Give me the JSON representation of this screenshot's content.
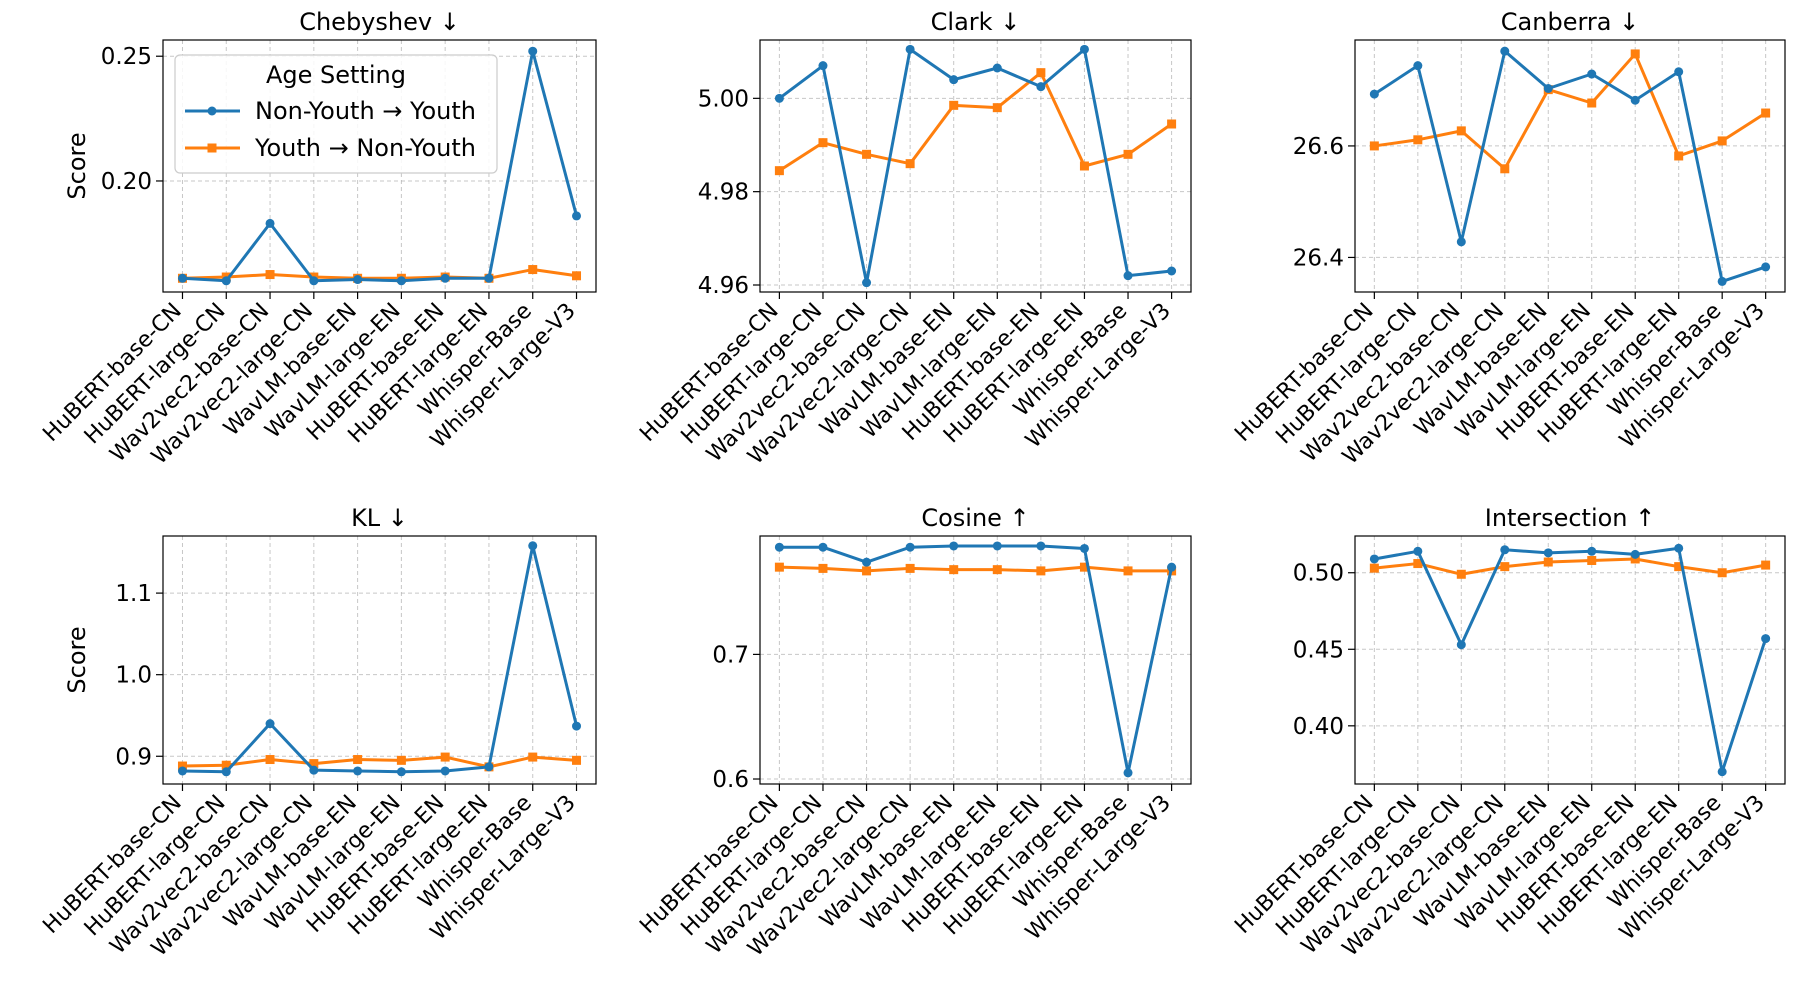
{
  "figure": {
    "legend": {
      "title": "Age Setting",
      "placement": "top-left of first panel",
      "entries": [
        {
          "name": "Non-Youth → Youth",
          "color": "#1f77b4",
          "marker": "circle"
        },
        {
          "name": "Youth → Non-Youth",
          "color": "#ff7f0e",
          "marker": "square"
        }
      ]
    },
    "ylabel": "Score"
  },
  "chart_data": [
    {
      "type": "line",
      "title": "Chebyshev ↓",
      "ylabel": "Score",
      "grid": true,
      "ylim": [
        0.1555,
        0.2565
      ],
      "yticks": [
        0.2,
        0.25
      ],
      "ytick_labels": [
        "0.20",
        "0.25"
      ],
      "categories": [
        "HuBERT-base-CN",
        "HuBERT-large-CN",
        "Wav2vec2-base-CN",
        "Wav2vec2-large-CN",
        "WavLM-base-EN",
        "WavLM-large-EN",
        "HuBERT-base-EN",
        "HuBERT-large-EN",
        "Whisper-Base",
        "Whisper-Large-V3"
      ],
      "series": [
        {
          "name": "Non-Youth → Youth",
          "color": "#1f77b4",
          "marker": "circle",
          "values": [
            0.161,
            0.16,
            0.183,
            0.16,
            0.1605,
            0.16,
            0.161,
            0.161,
            0.252,
            0.186
          ]
        },
        {
          "name": "Youth → Non-Youth",
          "color": "#ff7f0e",
          "marker": "square",
          "values": [
            0.161,
            0.1615,
            0.1625,
            0.1615,
            0.161,
            0.161,
            0.1615,
            0.161,
            0.1645,
            0.162
          ]
        }
      ]
    },
    {
      "type": "line",
      "title": "Clark ↓",
      "ylabel": "",
      "grid": true,
      "ylim": [
        4.9585,
        5.0125
      ],
      "yticks": [
        4.96,
        4.98,
        5.0
      ],
      "ytick_labels": [
        "4.96",
        "4.98",
        "5.00"
      ],
      "categories": [
        "HuBERT-base-CN",
        "HuBERT-large-CN",
        "Wav2vec2-base-CN",
        "Wav2vec2-large-CN",
        "WavLM-base-EN",
        "WavLM-large-EN",
        "HuBERT-base-EN",
        "HuBERT-large-EN",
        "Whisper-Base",
        "Whisper-Large-V3"
      ],
      "series": [
        {
          "name": "Non-Youth → Youth",
          "color": "#1f77b4",
          "marker": "circle",
          "values": [
            5.0,
            5.007,
            4.9605,
            5.0105,
            5.004,
            5.0065,
            5.0025,
            5.0105,
            4.962,
            4.963
          ]
        },
        {
          "name": "Youth → Non-Youth",
          "color": "#ff7f0e",
          "marker": "square",
          "values": [
            4.9845,
            4.9905,
            4.988,
            4.986,
            4.9985,
            4.998,
            5.0055,
            4.9855,
            4.988,
            4.9945
          ]
        }
      ]
    },
    {
      "type": "line",
      "title": "Canberra ↓",
      "ylabel": "",
      "grid": true,
      "ylim": [
        26.338,
        26.79
      ],
      "yticks": [
        26.4,
        26.6
      ],
      "ytick_labels": [
        "26.4",
        "26.6"
      ],
      "categories": [
        "HuBERT-base-CN",
        "HuBERT-large-CN",
        "Wav2vec2-base-CN",
        "Wav2vec2-large-CN",
        "WavLM-base-EN",
        "WavLM-large-EN",
        "HuBERT-base-EN",
        "HuBERT-large-EN",
        "Whisper-Base",
        "Whisper-Large-V3"
      ],
      "series": [
        {
          "name": "Non-Youth → Youth",
          "color": "#1f77b4",
          "marker": "circle",
          "values": [
            26.693,
            26.744,
            26.428,
            26.77,
            26.703,
            26.729,
            26.682,
            26.733,
            26.357,
            26.383
          ]
        },
        {
          "name": "Youth → Non-Youth",
          "color": "#ff7f0e",
          "marker": "square",
          "values": [
            26.6,
            26.611,
            26.627,
            26.559,
            26.701,
            26.677,
            26.765,
            26.582,
            26.609,
            26.659
          ]
        }
      ]
    },
    {
      "type": "line",
      "title": "KL ↓",
      "ylabel": "Score",
      "grid": true,
      "ylim": [
        0.866,
        1.17
      ],
      "yticks": [
        0.9,
        1.0,
        1.1
      ],
      "ytick_labels": [
        "0.9",
        "1.0",
        "1.1"
      ],
      "categories": [
        "HuBERT-base-CN",
        "HuBERT-large-CN",
        "Wav2vec2-base-CN",
        "Wav2vec2-large-CN",
        "WavLM-base-EN",
        "WavLM-large-EN",
        "HuBERT-base-EN",
        "HuBERT-large-EN",
        "Whisper-Base",
        "Whisper-Large-V3"
      ],
      "series": [
        {
          "name": "Non-Youth → Youth",
          "color": "#1f77b4",
          "marker": "circle",
          "values": [
            0.882,
            0.881,
            0.94,
            0.883,
            0.882,
            0.881,
            0.882,
            0.887,
            1.158,
            0.937
          ]
        },
        {
          "name": "Youth → Non-Youth",
          "color": "#ff7f0e",
          "marker": "square",
          "values": [
            0.888,
            0.889,
            0.896,
            0.891,
            0.896,
            0.895,
            0.899,
            0.887,
            0.899,
            0.895
          ]
        }
      ]
    },
    {
      "type": "line",
      "title": "Cosine ↑",
      "ylabel": "",
      "grid": true,
      "ylim": [
        0.596,
        0.795
      ],
      "yticks": [
        0.6,
        0.7
      ],
      "ytick_labels": [
        "0.6",
        "0.7"
      ],
      "categories": [
        "HuBERT-base-CN",
        "HuBERT-large-CN",
        "Wav2vec2-base-CN",
        "Wav2vec2-large-CN",
        "WavLM-base-EN",
        "WavLM-large-EN",
        "HuBERT-base-EN",
        "HuBERT-large-EN",
        "Whisper-Base",
        "Whisper-Large-V3"
      ],
      "series": [
        {
          "name": "Non-Youth → Youth",
          "color": "#1f77b4",
          "marker": "circle",
          "values": [
            0.786,
            0.786,
            0.774,
            0.786,
            0.787,
            0.787,
            0.787,
            0.785,
            0.605,
            0.77
          ]
        },
        {
          "name": "Youth → Non-Youth",
          "color": "#ff7f0e",
          "marker": "square",
          "values": [
            0.77,
            0.769,
            0.767,
            0.769,
            0.768,
            0.768,
            0.767,
            0.77,
            0.767,
            0.767
          ]
        }
      ]
    },
    {
      "type": "line",
      "title": "Intersection ↑",
      "ylabel": "",
      "grid": true,
      "ylim": [
        0.362,
        0.524
      ],
      "yticks": [
        0.4,
        0.45,
        0.5
      ],
      "ytick_labels": [
        "0.40",
        "0.45",
        "0.50"
      ],
      "categories": [
        "HuBERT-base-CN",
        "HuBERT-large-CN",
        "Wav2vec2-base-CN",
        "Wav2vec2-large-CN",
        "WavLM-base-EN",
        "WavLM-large-EN",
        "HuBERT-base-EN",
        "HuBERT-large-EN",
        "Whisper-Base",
        "Whisper-Large-V3"
      ],
      "series": [
        {
          "name": "Non-Youth → Youth",
          "color": "#1f77b4",
          "marker": "circle",
          "values": [
            0.509,
            0.514,
            0.453,
            0.515,
            0.513,
            0.514,
            0.512,
            0.516,
            0.37,
            0.457
          ]
        },
        {
          "name": "Youth → Non-Youth",
          "color": "#ff7f0e",
          "marker": "square",
          "values": [
            0.503,
            0.506,
            0.499,
            0.504,
            0.507,
            0.508,
            0.509,
            0.504,
            0.5,
            0.505
          ]
        }
      ]
    }
  ]
}
